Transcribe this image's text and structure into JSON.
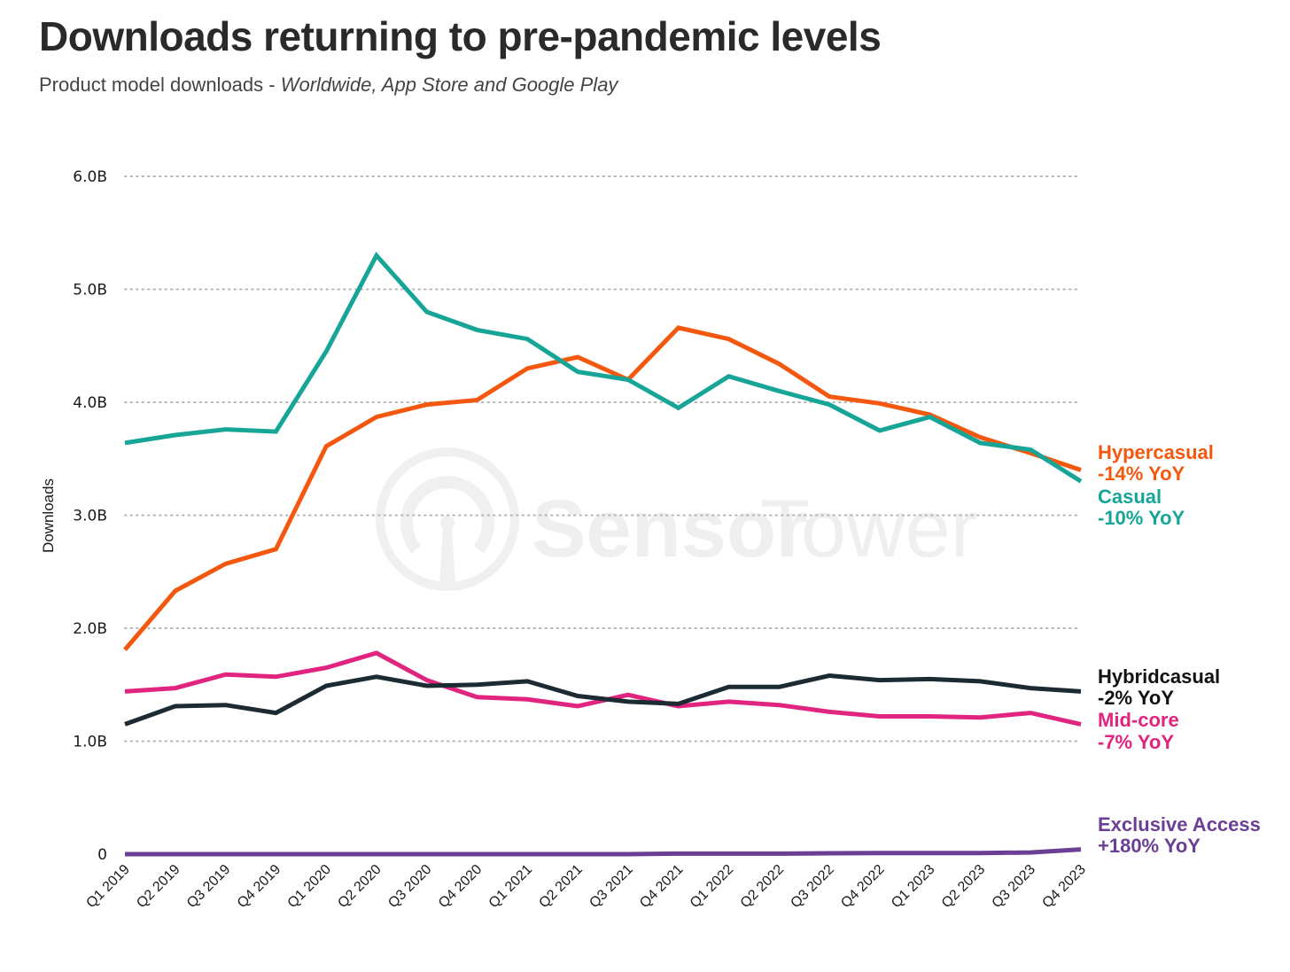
{
  "header": {
    "title": "Downloads returning to pre-pandemic levels",
    "subtitle_plain": "Product model downloads - ",
    "subtitle_italic": "Worldwide, App Store and Google Play"
  },
  "watermark": {
    "brand_bold": "Sensor",
    "brand_light": "Tower",
    "icon": "sensor-tower-logo-icon"
  },
  "chart_data": {
    "type": "line",
    "title": "Downloads returning to pre-pandemic levels",
    "subtitle": "Product model downloads - Worldwide, App Store and Google Play",
    "xlabel": "",
    "ylabel": "Downloads",
    "ylim": [
      0,
      6.0
    ],
    "yunit": "B",
    "grid": true,
    "legend": "right (end-of-line labels)",
    "yticks": [
      {
        "value": 0,
        "label": "0"
      },
      {
        "value": 1.0,
        "label": "1.0B"
      },
      {
        "value": 2.0,
        "label": "2.0B"
      },
      {
        "value": 3.0,
        "label": "3.0B"
      },
      {
        "value": 4.0,
        "label": "4.0B"
      },
      {
        "value": 5.0,
        "label": "5.0B"
      },
      {
        "value": 6.0,
        "label": "6.0B"
      }
    ],
    "categories": [
      "Q1 2019",
      "Q2 2019",
      "Q3 2019",
      "Q4 2019",
      "Q1 2020",
      "Q2 2020",
      "Q3 2020",
      "Q4 2020",
      "Q1 2021",
      "Q2 2021",
      "Q3 2021",
      "Q4 2021",
      "Q1 2022",
      "Q2 2022",
      "Q3 2022",
      "Q4 2022",
      "Q1 2023",
      "Q2 2023",
      "Q3 2023",
      "Q4 2023"
    ],
    "series": [
      {
        "name": "Casual",
        "change": "-10% YoY",
        "color": "#16a596",
        "values": [
          3.64,
          3.71,
          3.76,
          3.74,
          4.45,
          5.3,
          4.8,
          4.64,
          4.56,
          4.27,
          4.2,
          3.95,
          4.23,
          4.1,
          3.98,
          3.75,
          3.87,
          3.64,
          3.58,
          3.3
        ]
      },
      {
        "name": "Hypercasual",
        "change": "-14% YoY",
        "color": "#f4580f",
        "values": [
          1.81,
          2.33,
          2.57,
          2.7,
          3.61,
          3.87,
          3.98,
          4.02,
          4.3,
          4.4,
          4.2,
          4.66,
          4.56,
          4.34,
          4.05,
          3.99,
          3.89,
          3.69,
          3.55,
          3.4
        ]
      },
      {
        "name": "Hybridcasual",
        "change": "-2% YoY",
        "color": "#1b2a33",
        "values": [
          1.15,
          1.31,
          1.32,
          1.25,
          1.49,
          1.57,
          1.49,
          1.5,
          1.53,
          1.4,
          1.35,
          1.33,
          1.48,
          1.48,
          1.58,
          1.54,
          1.55,
          1.53,
          1.47,
          1.44
        ]
      },
      {
        "name": "Mid-core",
        "change": "-7% YoY",
        "color": "#e0247f",
        "values": [
          1.44,
          1.47,
          1.59,
          1.57,
          1.65,
          1.78,
          1.54,
          1.39,
          1.37,
          1.31,
          1.41,
          1.31,
          1.35,
          1.32,
          1.26,
          1.22,
          1.22,
          1.21,
          1.25,
          1.15
        ]
      },
      {
        "name": "Exclusive Access",
        "change": "+180% YoY",
        "color": "#6b3f94",
        "values": [
          0.0,
          0.0,
          0.0,
          0.0,
          0.0,
          0.0,
          0.0,
          0.0,
          0.0,
          0.0,
          0.0,
          0.005,
          0.005,
          0.005,
          0.008,
          0.01,
          0.01,
          0.01,
          0.015,
          0.042
        ]
      }
    ],
    "end_labels": [
      {
        "series": "Hypercasual",
        "name": "Hypercasual",
        "change": "-14% YoY",
        "color": "#f4580f"
      },
      {
        "series": "Casual",
        "name": "Casual",
        "change": "-10% YoY",
        "color": "#16a596"
      },
      {
        "series": "Hybridcasual",
        "name": "Hybridcasual",
        "change": "-2% YoY",
        "color": "#111111"
      },
      {
        "series": "Mid-core",
        "name": "Mid-core",
        "change": "-7% YoY",
        "color": "#e0247f"
      },
      {
        "series": "Exclusive Access",
        "name": "Exclusive Access",
        "change": "+180% YoY",
        "color": "#6b3f94"
      }
    ]
  }
}
